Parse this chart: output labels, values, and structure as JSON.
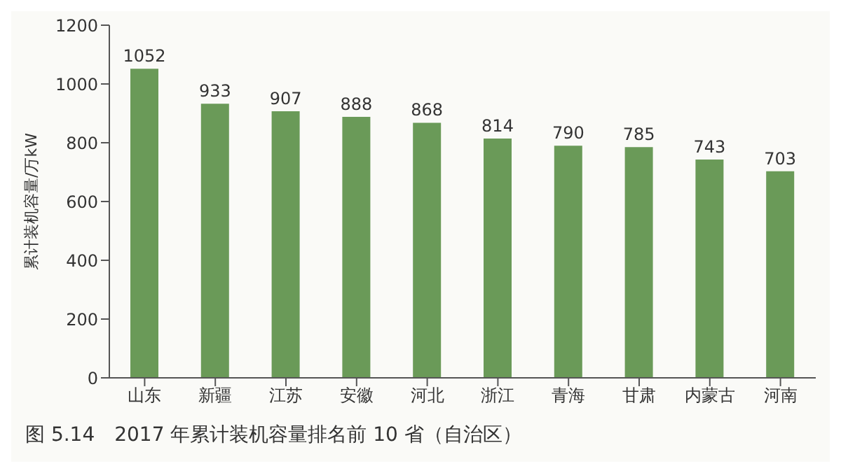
{
  "chart_data": {
    "type": "bar",
    "title": "图 5.14　2017 年累计装机容量排名前 10 省（自治区）",
    "ylabel": "累计装机容量/万kW",
    "categories": [
      "山东",
      "新疆",
      "江苏",
      "安徽",
      "河北",
      "浙江",
      "青海",
      "甘肃",
      "内蒙古",
      "河南"
    ],
    "values": [
      1052,
      933,
      907,
      888,
      868,
      814,
      790,
      785,
      743,
      703
    ],
    "color": "#6a9a58",
    "ylim": [
      0,
      1200
    ],
    "yticks": [
      0,
      200,
      400,
      600,
      800,
      1000,
      1200
    ],
    "data_labels": true,
    "grid": false
  }
}
